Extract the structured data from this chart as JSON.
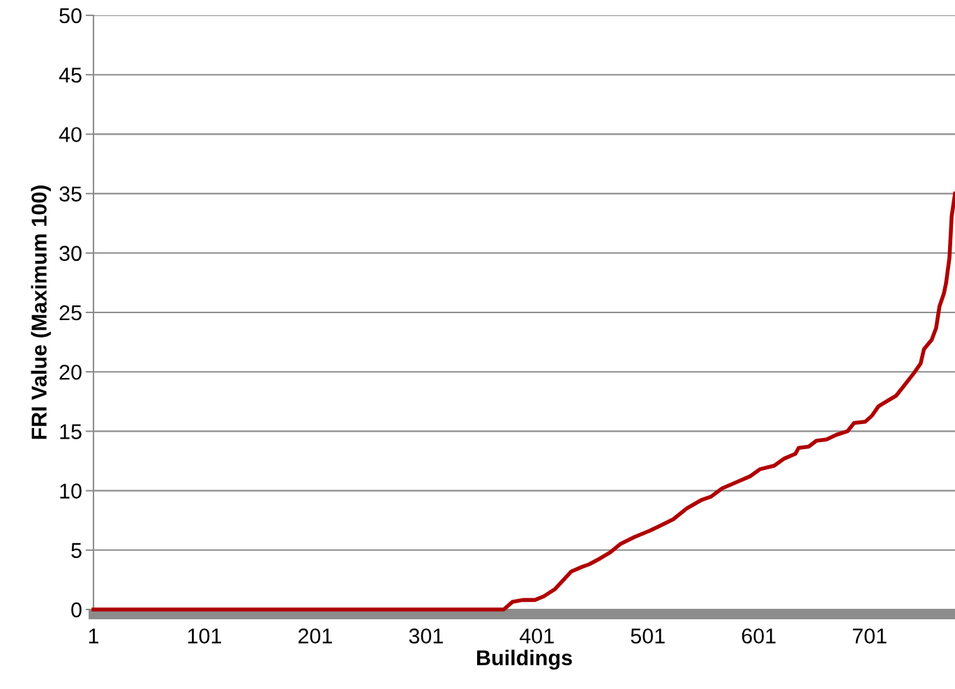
{
  "chart_data": {
    "type": "line",
    "xlabel": "Buildings",
    "ylabel": "FRI Value (Maximum 100)",
    "xlim": [
      1,
      778
    ],
    "xticks": [
      1,
      101,
      201,
      301,
      401,
      501,
      601,
      701
    ],
    "ylim": [
      0,
      50
    ],
    "yticks": [
      0,
      5,
      10,
      15,
      20,
      25,
      30,
      35,
      40,
      45,
      50
    ],
    "grid": "y",
    "legend": false,
    "marker": "none",
    "line_style": "solid",
    "series": [
      {
        "color": "#b00000",
        "x": [
          1,
          371,
          379,
          388,
          399,
          407,
          417,
          426,
          432,
          442,
          448,
          458,
          467,
          476,
          489,
          502,
          511,
          524,
          536,
          549,
          558,
          568,
          583,
          593,
          602,
          615,
          624,
          634,
          637,
          646,
          653,
          662,
          671,
          681,
          687,
          697,
          703,
          709,
          716,
          725,
          731,
          741,
          747,
          750,
          757,
          761,
          764,
          768,
          770,
          773,
          775,
          778
        ],
        "values": [
          0,
          0,
          0.65,
          0.8,
          0.8,
          1.1,
          1.7,
          2.6,
          3.2,
          3.6,
          3.8,
          4.3,
          4.8,
          5.5,
          6.1,
          6.6,
          7.0,
          7.6,
          8.5,
          9.2,
          9.5,
          10.2,
          10.8,
          11.2,
          11.8,
          12.1,
          12.7,
          13.1,
          13.6,
          13.7,
          14.2,
          14.3,
          14.7,
          15.0,
          15.7,
          15.8,
          16.3,
          17.1,
          17.5,
          18.0,
          18.7,
          19.9,
          20.7,
          21.9,
          22.7,
          23.7,
          25.5,
          26.6,
          27.5,
          29.6,
          33.1,
          35.0
        ]
      }
    ]
  }
}
